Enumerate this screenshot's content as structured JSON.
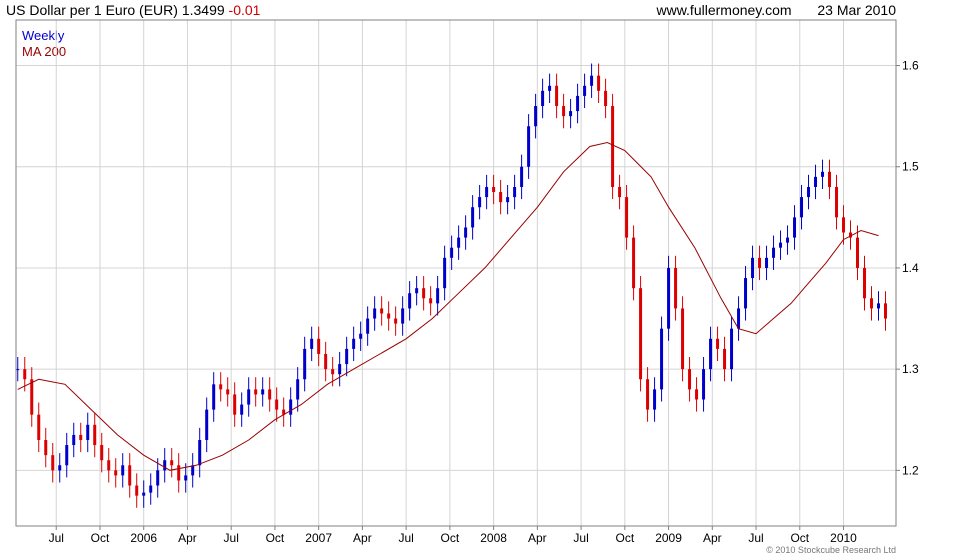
{
  "header": {
    "title": "US Dollar per 1 Euro (EUR) 1.3499",
    "change": "-0.01",
    "site": "www.fullermoney.com",
    "date": "23 Mar 2010"
  },
  "legend": {
    "series1": "Weekly",
    "series2": "MA 200"
  },
  "copyright": "© 2010 Stockcube Research Ltd",
  "colors": {
    "up": "#0000cc",
    "down": "#dd0000",
    "ma": "#990000",
    "grid": "#d4d4d4"
  },
  "chart_data": {
    "type": "candlestick",
    "title": "US Dollar per 1 Euro (EUR)",
    "ylim": [
      1.145,
      1.645
    ],
    "y_ticks": [
      1.2,
      1.3,
      1.4,
      1.5,
      1.6
    ],
    "y_tick_labels": [
      "1.2",
      "1.3",
      "1.4",
      "1.5",
      "1.6"
    ],
    "x_ticks": [
      {
        "label": "Jul",
        "x": 2005.5
      },
      {
        "label": "Oct",
        "x": 2005.75
      },
      {
        "label": "2006",
        "x": 2006.0
      },
      {
        "label": "Apr",
        "x": 2006.25
      },
      {
        "label": "Jul",
        "x": 2006.5
      },
      {
        "label": "Oct",
        "x": 2006.75
      },
      {
        "label": "2007",
        "x": 2007.0
      },
      {
        "label": "Apr",
        "x": 2007.25
      },
      {
        "label": "Jul",
        "x": 2007.5
      },
      {
        "label": "Oct",
        "x": 2007.75
      },
      {
        "label": "2008",
        "x": 2008.0
      },
      {
        "label": "Apr",
        "x": 2008.25
      },
      {
        "label": "Jul",
        "x": 2008.5
      },
      {
        "label": "Oct",
        "x": 2008.75
      },
      {
        "label": "2009",
        "x": 2009.0
      },
      {
        "label": "Apr",
        "x": 2009.25
      },
      {
        "label": "Jul",
        "x": 2009.5
      },
      {
        "label": "Oct",
        "x": 2009.75
      },
      {
        "label": "2010",
        "x": 2010.0
      }
    ],
    "xlim": [
      2005.27,
      2010.3
    ],
    "weekly_close": [
      [
        2005.28,
        1.3
      ],
      [
        2005.32,
        1.29
      ],
      [
        2005.36,
        1.255
      ],
      [
        2005.4,
        1.23
      ],
      [
        2005.44,
        1.215
      ],
      [
        2005.48,
        1.2
      ],
      [
        2005.52,
        1.205
      ],
      [
        2005.56,
        1.225
      ],
      [
        2005.6,
        1.235
      ],
      [
        2005.64,
        1.23
      ],
      [
        2005.68,
        1.245
      ],
      [
        2005.72,
        1.225
      ],
      [
        2005.76,
        1.21
      ],
      [
        2005.8,
        1.2
      ],
      [
        2005.84,
        1.195
      ],
      [
        2005.88,
        1.205
      ],
      [
        2005.92,
        1.185
      ],
      [
        2005.96,
        1.175
      ],
      [
        2006.0,
        1.178
      ],
      [
        2006.04,
        1.185
      ],
      [
        2006.08,
        1.2
      ],
      [
        2006.12,
        1.21
      ],
      [
        2006.16,
        1.205
      ],
      [
        2006.2,
        1.19
      ],
      [
        2006.24,
        1.195
      ],
      [
        2006.28,
        1.205
      ],
      [
        2006.32,
        1.23
      ],
      [
        2006.36,
        1.26
      ],
      [
        2006.4,
        1.285
      ],
      [
        2006.44,
        1.28
      ],
      [
        2006.48,
        1.275
      ],
      [
        2006.52,
        1.255
      ],
      [
        2006.56,
        1.265
      ],
      [
        2006.6,
        1.28
      ],
      [
        2006.64,
        1.275
      ],
      [
        2006.68,
        1.28
      ],
      [
        2006.72,
        1.27
      ],
      [
        2006.76,
        1.26
      ],
      [
        2006.8,
        1.255
      ],
      [
        2006.84,
        1.27
      ],
      [
        2006.88,
        1.29
      ],
      [
        2006.92,
        1.32
      ],
      [
        2006.96,
        1.33
      ],
      [
        2007.0,
        1.315
      ],
      [
        2007.04,
        1.3
      ],
      [
        2007.08,
        1.295
      ],
      [
        2007.12,
        1.305
      ],
      [
        2007.16,
        1.32
      ],
      [
        2007.2,
        1.33
      ],
      [
        2007.24,
        1.335
      ],
      [
        2007.28,
        1.35
      ],
      [
        2007.32,
        1.36
      ],
      [
        2007.36,
        1.355
      ],
      [
        2007.4,
        1.35
      ],
      [
        2007.44,
        1.345
      ],
      [
        2007.48,
        1.36
      ],
      [
        2007.52,
        1.375
      ],
      [
        2007.56,
        1.38
      ],
      [
        2007.6,
        1.37
      ],
      [
        2007.64,
        1.365
      ],
      [
        2007.68,
        1.38
      ],
      [
        2007.72,
        1.41
      ],
      [
        2007.76,
        1.42
      ],
      [
        2007.8,
        1.43
      ],
      [
        2007.84,
        1.44
      ],
      [
        2007.88,
        1.46
      ],
      [
        2007.92,
        1.47
      ],
      [
        2007.96,
        1.48
      ],
      [
        2008.0,
        1.475
      ],
      [
        2008.04,
        1.465
      ],
      [
        2008.08,
        1.47
      ],
      [
        2008.12,
        1.48
      ],
      [
        2008.16,
        1.5
      ],
      [
        2008.2,
        1.54
      ],
      [
        2008.24,
        1.56
      ],
      [
        2008.28,
        1.575
      ],
      [
        2008.32,
        1.58
      ],
      [
        2008.36,
        1.56
      ],
      [
        2008.4,
        1.55
      ],
      [
        2008.44,
        1.555
      ],
      [
        2008.48,
        1.57
      ],
      [
        2008.52,
        1.58
      ],
      [
        2008.56,
        1.59
      ],
      [
        2008.6,
        1.575
      ],
      [
        2008.64,
        1.56
      ],
      [
        2008.68,
        1.48
      ],
      [
        2008.72,
        1.47
      ],
      [
        2008.76,
        1.43
      ],
      [
        2008.8,
        1.38
      ],
      [
        2008.84,
        1.29
      ],
      [
        2008.88,
        1.26
      ],
      [
        2008.92,
        1.28
      ],
      [
        2008.96,
        1.34
      ],
      [
        2009.0,
        1.4
      ],
      [
        2009.04,
        1.36
      ],
      [
        2009.08,
        1.3
      ],
      [
        2009.12,
        1.28
      ],
      [
        2009.16,
        1.27
      ],
      [
        2009.2,
        1.3
      ],
      [
        2009.24,
        1.33
      ],
      [
        2009.28,
        1.32
      ],
      [
        2009.32,
        1.3
      ],
      [
        2009.36,
        1.34
      ],
      [
        2009.4,
        1.36
      ],
      [
        2009.44,
        1.39
      ],
      [
        2009.48,
        1.41
      ],
      [
        2009.52,
        1.4
      ],
      [
        2009.56,
        1.41
      ],
      [
        2009.6,
        1.42
      ],
      [
        2009.64,
        1.425
      ],
      [
        2009.68,
        1.43
      ],
      [
        2009.72,
        1.45
      ],
      [
        2009.76,
        1.47
      ],
      [
        2009.8,
        1.48
      ],
      [
        2009.84,
        1.49
      ],
      [
        2009.88,
        1.495
      ],
      [
        2009.92,
        1.48
      ],
      [
        2009.96,
        1.45
      ],
      [
        2010.0,
        1.435
      ],
      [
        2010.04,
        1.43
      ],
      [
        2010.08,
        1.4
      ],
      [
        2010.12,
        1.37
      ],
      [
        2010.16,
        1.36
      ],
      [
        2010.2,
        1.365
      ],
      [
        2010.24,
        1.35
      ]
    ],
    "ma200": [
      [
        2005.28,
        1.28
      ],
      [
        2005.4,
        1.29
      ],
      [
        2005.55,
        1.285
      ],
      [
        2005.7,
        1.26
      ],
      [
        2005.85,
        1.235
      ],
      [
        2006.0,
        1.215
      ],
      [
        2006.15,
        1.2
      ],
      [
        2006.3,
        1.205
      ],
      [
        2006.45,
        1.215
      ],
      [
        2006.6,
        1.23
      ],
      [
        2006.75,
        1.25
      ],
      [
        2006.9,
        1.265
      ],
      [
        2007.05,
        1.285
      ],
      [
        2007.2,
        1.3
      ],
      [
        2007.35,
        1.315
      ],
      [
        2007.5,
        1.33
      ],
      [
        2007.65,
        1.35
      ],
      [
        2007.8,
        1.375
      ],
      [
        2007.95,
        1.4
      ],
      [
        2008.1,
        1.43
      ],
      [
        2008.25,
        1.46
      ],
      [
        2008.4,
        1.495
      ],
      [
        2008.55,
        1.52
      ],
      [
        2008.65,
        1.524
      ],
      [
        2008.75,
        1.516
      ],
      [
        2008.9,
        1.49
      ],
      [
        2009.0,
        1.46
      ],
      [
        2009.15,
        1.42
      ],
      [
        2009.3,
        1.37
      ],
      [
        2009.4,
        1.34
      ],
      [
        2009.5,
        1.335
      ],
      [
        2009.6,
        1.35
      ],
      [
        2009.7,
        1.365
      ],
      [
        2009.8,
        1.385
      ],
      [
        2009.9,
        1.405
      ],
      [
        2010.0,
        1.428
      ],
      [
        2010.1,
        1.437
      ],
      [
        2010.2,
        1.432
      ]
    ]
  }
}
